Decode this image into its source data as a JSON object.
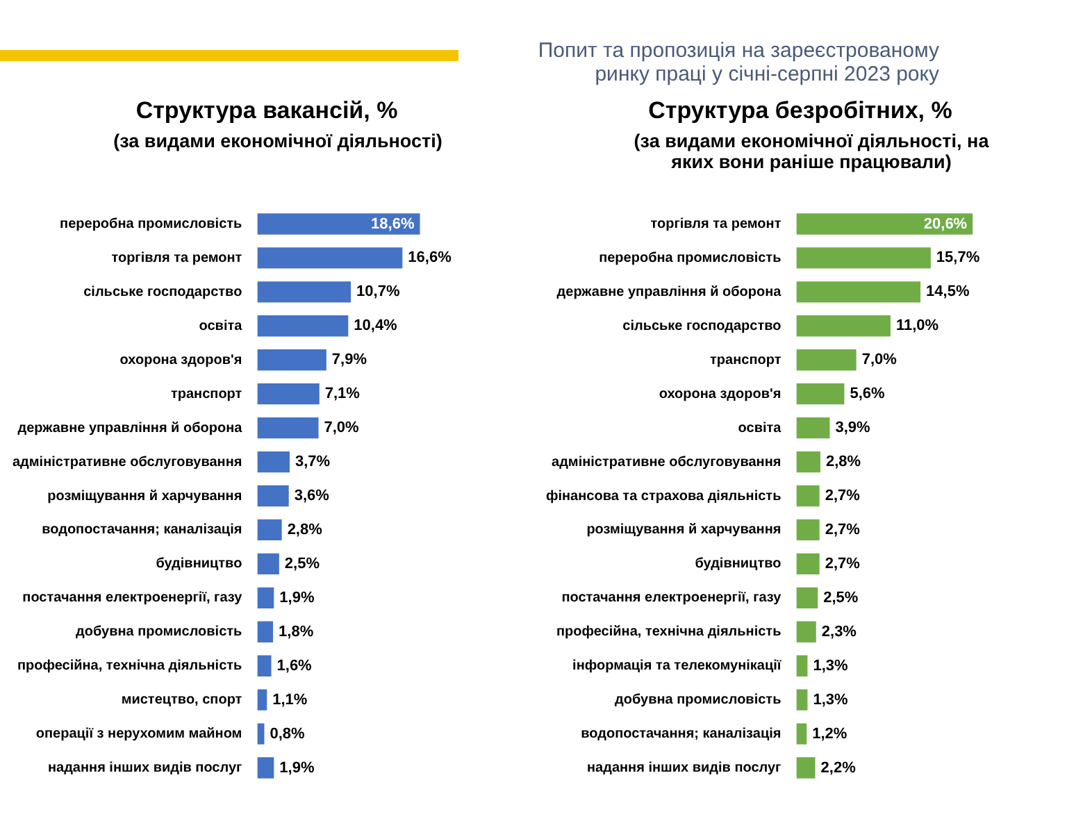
{
  "chart_data": [
    {
      "type": "bar",
      "orientation": "horizontal",
      "title": "Структура вакансій, %",
      "subtitle": "(за видами економічної діяльності)",
      "annotations": [
        "Попит та пропозиція на зареєстрованому ринку праці у січні-серпні 2023 року"
      ],
      "categories": [
        "переробна промисловість",
        "торгівля та ремонт",
        "сільське господарство",
        "освіта",
        "охорона здоров'я",
        "транспорт",
        "державне управління й оборона",
        "адміністративне обслуговування",
        "розміщування й харчування",
        "водопостачання; каналізація",
        "будівництво",
        "постачання електроенергії, газу",
        "добувна промисловість",
        "професійна, технічна діяльність",
        "мистецтво, спорт",
        "операції з нерухомим майном",
        "надання інших видів послуг"
      ],
      "values": [
        18.6,
        16.6,
        10.7,
        10.4,
        7.9,
        7.1,
        7.0,
        3.7,
        3.6,
        2.8,
        2.5,
        1.9,
        1.8,
        1.6,
        1.1,
        0.8,
        1.9
      ],
      "value_labels": [
        "18,6%",
        "16,6%",
        "10,7%",
        "10,4%",
        "7,9%",
        "7,1%",
        "7,0%",
        "3,7%",
        "3,6%",
        "2,8%",
        "2,5%",
        "1,9%",
        "1,8%",
        "1,6%",
        "1,1%",
        "0,8%",
        "1,9%"
      ],
      "color": "#4472c4"
    },
    {
      "type": "bar",
      "orientation": "horizontal",
      "title": "Структура безробітних, %",
      "subtitle": "(за видами економічної діяльності, на яких вони раніше працювали)",
      "categories": [
        "торгівля та ремонт",
        "переробна промисловість",
        "державне управління й оборона",
        "сільське господарство",
        "транспорт",
        "охорона здоров'я",
        "освіта",
        "адміністративне обслуговування",
        "фінансова та страхова діяльність",
        "розміщування й харчування",
        "будівництво",
        "постачання електроенергії, газу",
        "професійна, технічна діяльність",
        "інформація та телекомунікації",
        "добувна промисловість",
        "водопостачання; каналізація",
        "надання інших видів послуг"
      ],
      "values": [
        20.6,
        15.7,
        14.5,
        11.0,
        7.0,
        5.6,
        3.9,
        2.8,
        2.7,
        2.7,
        2.7,
        2.5,
        2.3,
        1.3,
        1.3,
        1.2,
        2.2
      ],
      "value_labels": [
        "20,6%",
        "15,7%",
        "14,5%",
        "11,0%",
        "7,0%",
        "5,6%",
        "3,9%",
        "2,8%",
        "2,7%",
        "2,7%",
        "2,7%",
        "2,5%",
        "2,3%",
        "1,3%",
        "1,3%",
        "1,2%",
        "2,2%"
      ],
      "color": "#70ad47"
    }
  ]
}
